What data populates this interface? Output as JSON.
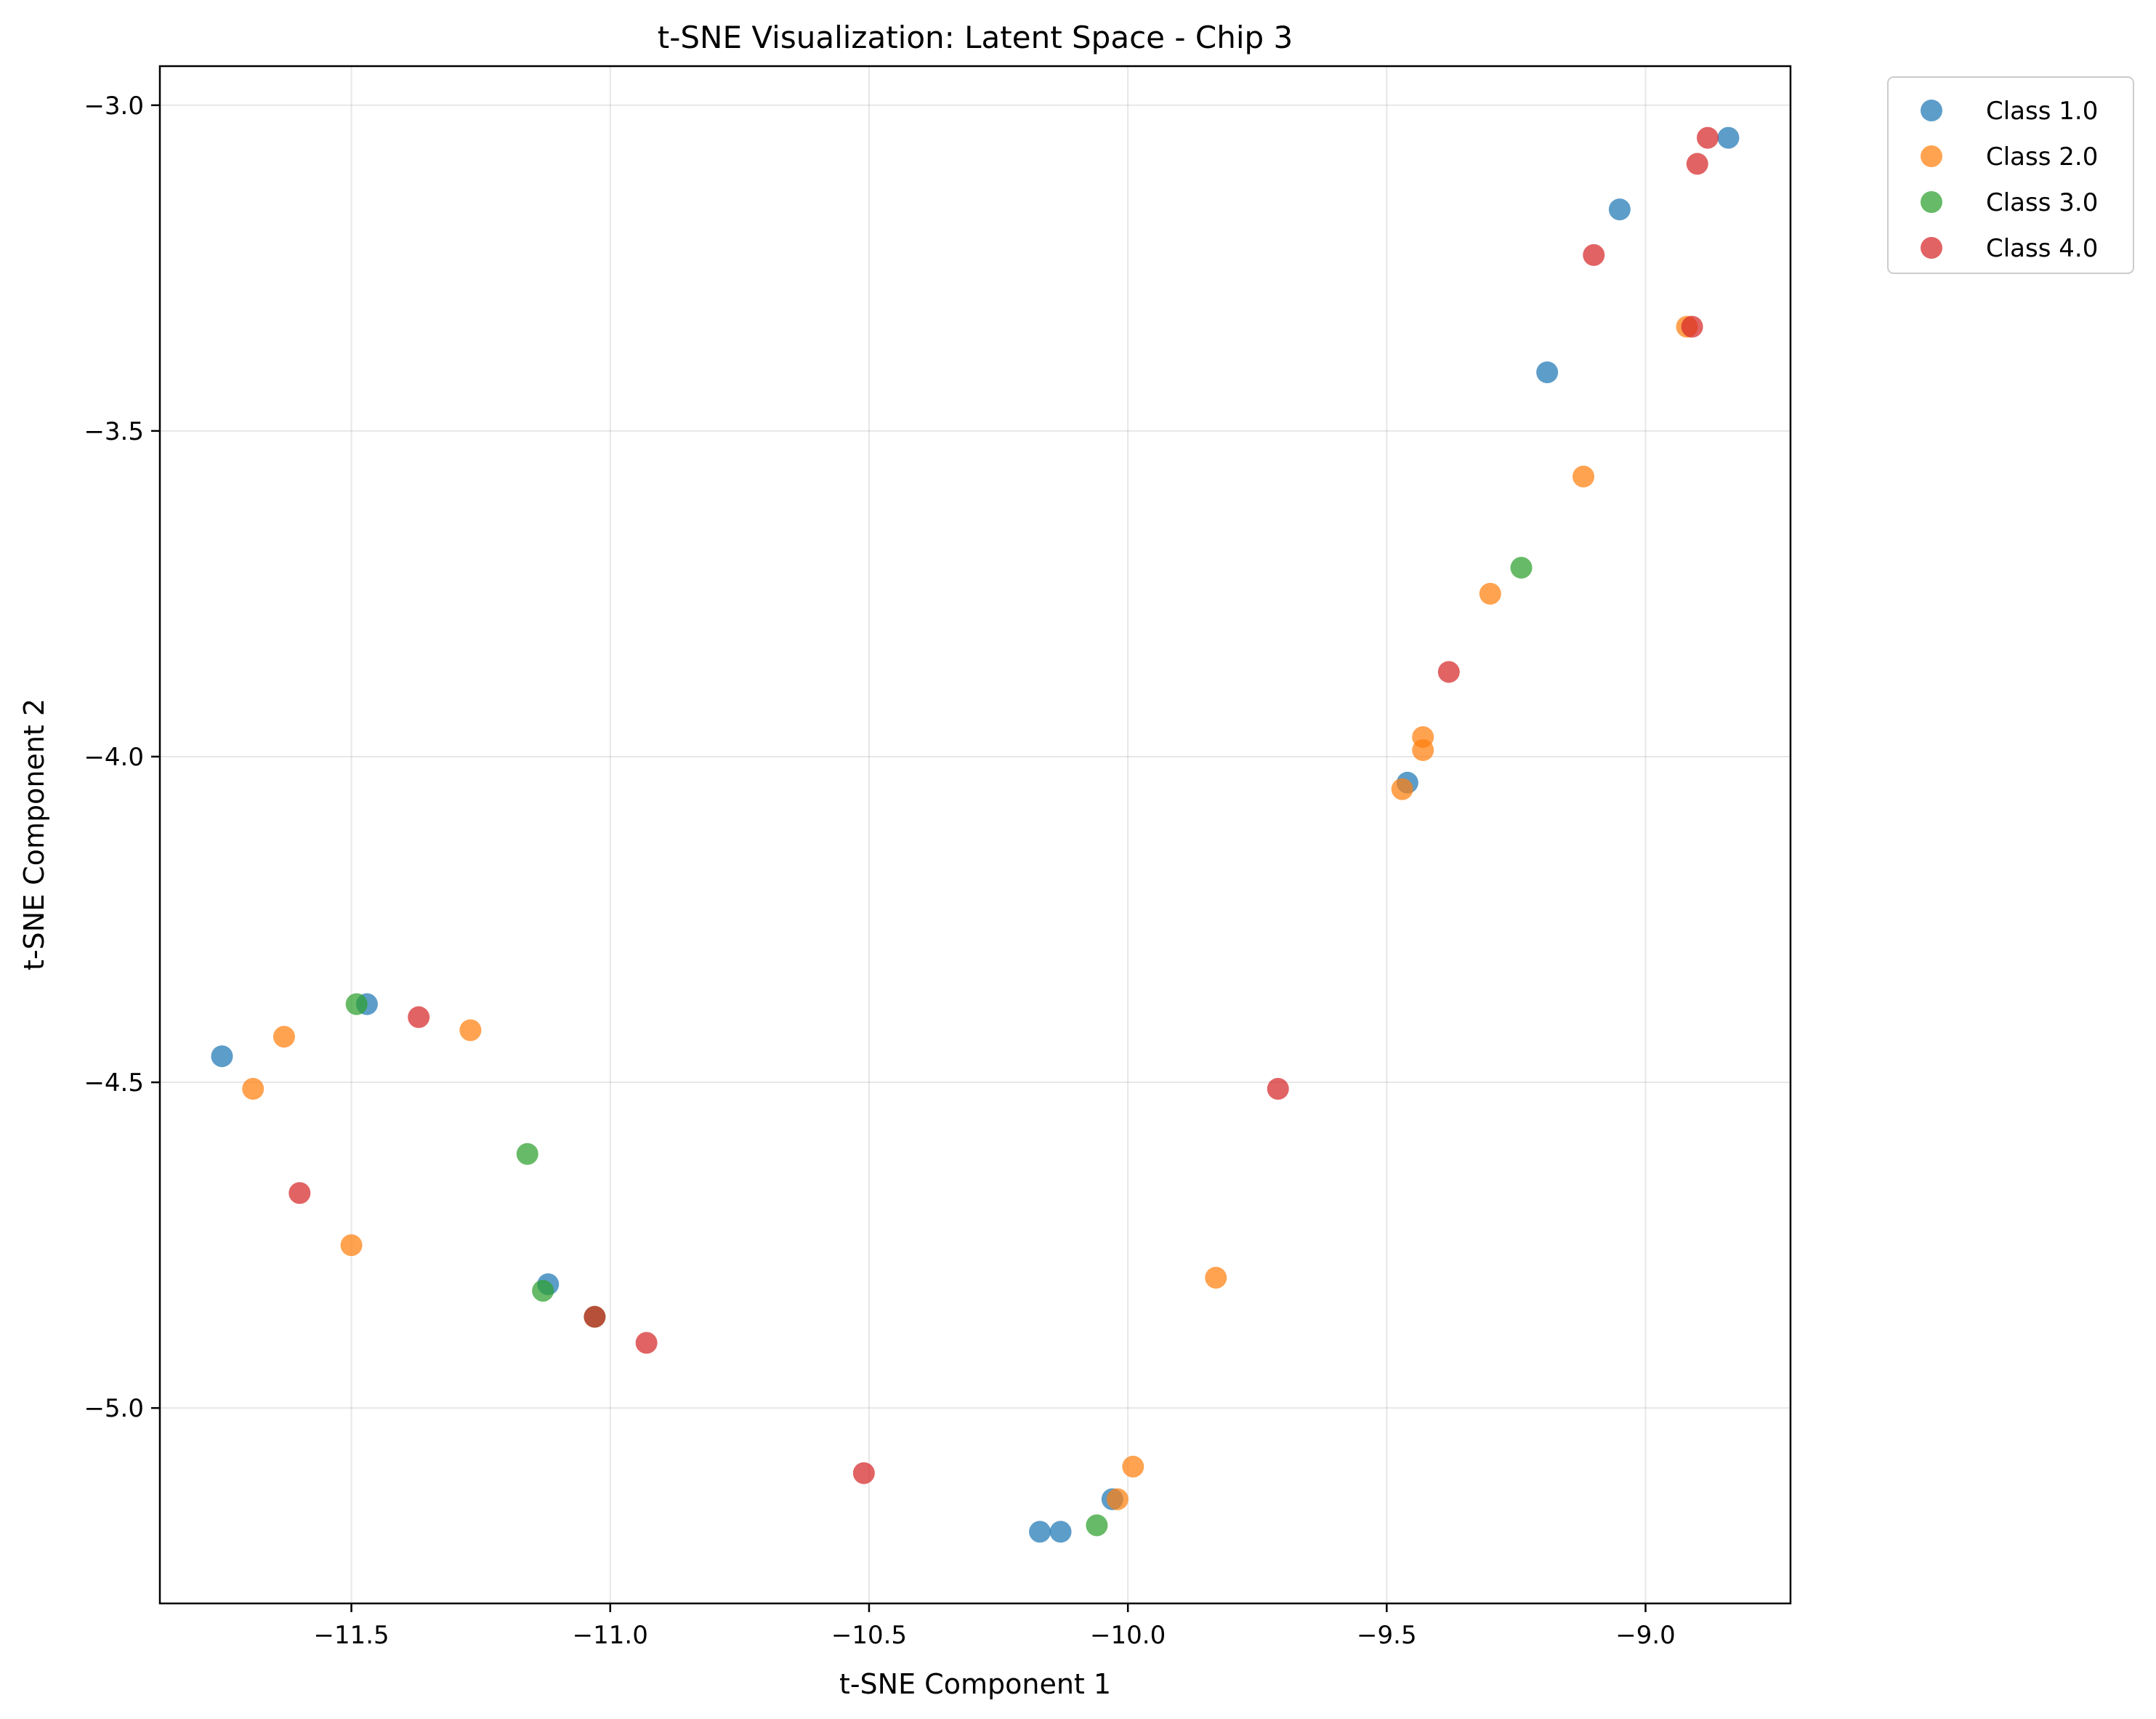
{
  "chart_data": {
    "type": "scatter",
    "title": "t-SNE Visualization: Latent Space - Chip 3",
    "xlabel": "t-SNE Component 1",
    "ylabel": "t-SNE Component 2",
    "xlim": [
      -11.87,
      -8.72
    ],
    "ylim": [
      -5.3,
      -2.94
    ],
    "xticks": [
      -11.5,
      -11.0,
      -10.5,
      -10.0,
      -9.5,
      -9.0
    ],
    "xtick_labels": [
      "−11.5",
      "−11.0",
      "−10.5",
      "−10.0",
      "−9.5",
      "−9.0"
    ],
    "yticks": [
      -3.0,
      -3.5,
      -4.0,
      -4.5,
      -5.0
    ],
    "ytick_labels": [
      "−3.0",
      "−3.5",
      "−4.0",
      "−4.5",
      "−5.0"
    ],
    "grid": true,
    "legend_position": "outside-top-right",
    "series": [
      {
        "name": "Class 1.0",
        "color": "#1f77b4",
        "points": [
          [
            -8.84,
            -3.05
          ],
          [
            -9.05,
            -3.16
          ],
          [
            -9.19,
            -3.41
          ],
          [
            -9.46,
            -4.04
          ],
          [
            -11.75,
            -4.46
          ],
          [
            -11.47,
            -4.38
          ],
          [
            -11.12,
            -4.81
          ],
          [
            -10.03,
            -5.14
          ],
          [
            -10.17,
            -5.19
          ],
          [
            -10.13,
            -5.19
          ]
        ]
      },
      {
        "name": "Class 2.0",
        "color": "#ff7f0e",
        "points": [
          [
            -8.92,
            -3.34
          ],
          [
            -9.12,
            -3.57
          ],
          [
            -9.3,
            -3.75
          ],
          [
            -9.43,
            -3.97
          ],
          [
            -9.43,
            -3.99
          ],
          [
            -9.47,
            -4.05
          ],
          [
            -11.63,
            -4.43
          ],
          [
            -11.69,
            -4.51
          ],
          [
            -11.27,
            -4.42
          ],
          [
            -11.5,
            -4.75
          ],
          [
            -9.83,
            -4.8
          ],
          [
            -9.99,
            -5.09
          ],
          [
            -10.02,
            -5.14
          ]
        ]
      },
      {
        "name": "Class 3.0",
        "color": "#2ca02c",
        "points": [
          [
            -9.24,
            -3.71
          ],
          [
            -11.49,
            -4.38
          ],
          [
            -11.16,
            -4.61
          ],
          [
            -11.13,
            -4.82
          ],
          [
            -11.03,
            -4.86
          ],
          [
            -10.06,
            -5.18
          ]
        ]
      },
      {
        "name": "Class 4.0",
        "color": "#d62728",
        "points": [
          [
            -8.88,
            -3.05
          ],
          [
            -8.9,
            -3.09
          ],
          [
            -9.1,
            -3.23
          ],
          [
            -8.91,
            -3.34
          ],
          [
            -9.38,
            -3.87
          ],
          [
            -11.37,
            -4.4
          ],
          [
            -9.71,
            -4.51
          ],
          [
            -11.6,
            -4.67
          ],
          [
            -11.03,
            -4.86
          ],
          [
            -10.93,
            -4.9
          ],
          [
            -10.51,
            -5.1
          ]
        ]
      }
    ]
  }
}
